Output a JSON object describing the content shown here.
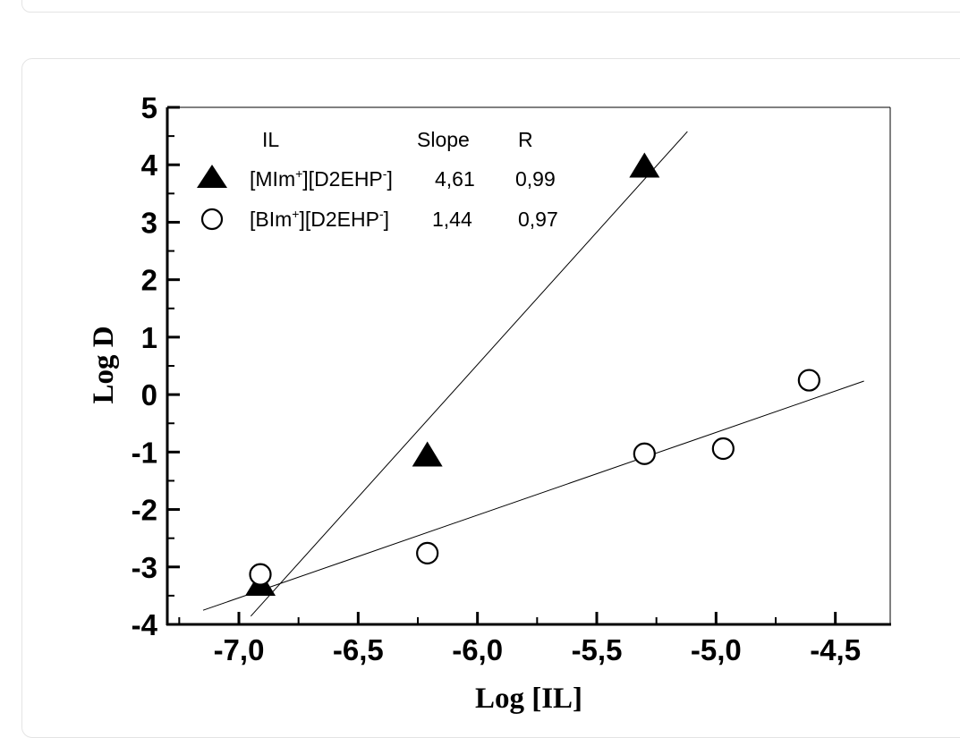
{
  "chart_data": {
    "type": "scatter",
    "xlabel": "Log [IL]",
    "ylabel": "Log D",
    "xlim": [
      -7.3,
      -4.27
    ],
    "ylim": [
      -4,
      5
    ],
    "x_ticks": [
      -7.0,
      -6.5,
      -6.0,
      -5.5,
      -5.0,
      -4.5
    ],
    "x_tick_labels": [
      "-7,0",
      "-6,5",
      "-6,0",
      "-5,5",
      "-5,0",
      "-4,5"
    ],
    "y_ticks": [
      5,
      4,
      3,
      2,
      1,
      0,
      -1,
      -2,
      -3,
      -4
    ],
    "y_tick_labels": [
      "5",
      "4",
      "3",
      "2",
      "1",
      "0",
      "-1",
      "-2",
      "-3",
      "-4"
    ],
    "grid": false,
    "legend_position": "top-left",
    "legend_headers": {
      "col1": "IL",
      "col2": "Slope",
      "col3": "R"
    },
    "series": [
      {
        "name_main": "[MIm",
        "name_sup1": "+",
        "name_mid": "][D2EHP",
        "name_sup2": "-",
        "name_end": "]",
        "marker": "filled-triangle",
        "slope_label": "4,61",
        "r_label": "0,99",
        "x": [
          -6.91,
          -6.21,
          -5.3
        ],
        "y": [
          -3.3,
          -1.05,
          3.98
        ],
        "fit": {
          "slope": 4.61,
          "x_range": [
            -6.95,
            -5.12
          ]
        }
      },
      {
        "name_main": "[BIm",
        "name_sup1": "+",
        "name_mid": "][D2EHP",
        "name_sup2": "-",
        "name_end": "]",
        "marker": "open-circle",
        "slope_label": "1,44",
        "r_label": "0,97",
        "x": [
          -6.91,
          -6.21,
          -5.3,
          -4.97,
          -4.61
        ],
        "y": [
          -3.13,
          -2.76,
          -1.03,
          -0.94,
          0.25
        ],
        "fit": {
          "slope": 1.44,
          "x_range": [
            -7.15,
            -4.38
          ]
        }
      }
    ]
  }
}
